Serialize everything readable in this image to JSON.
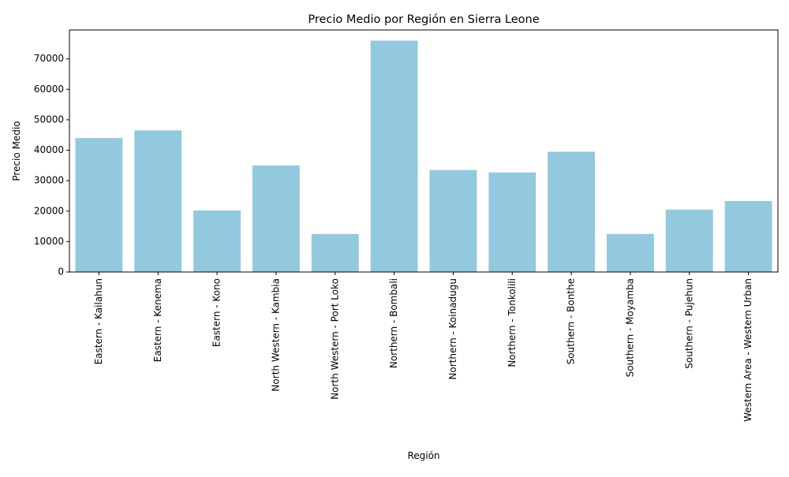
{
  "chart_data": {
    "type": "bar",
    "title": "Precio Medio por Región en Sierra Leone",
    "xlabel": "Región",
    "ylabel": "Precio Medio",
    "categories": [
      "Eastern - Kailahun",
      "Eastern - Kenema",
      "Eastern - Kono",
      "North Western - Kambia",
      "North Western - Port Loko",
      "Northern - Bombali",
      "Northern - Koinadugu",
      "Northern - Tonkolili",
      "Southern - Bonthe",
      "Southern - Moyamba",
      "Southern - Pujehun",
      "Western Area - Western Urban"
    ],
    "values": [
      44000,
      46500,
      20200,
      35000,
      12500,
      76000,
      33500,
      32700,
      39500,
      12500,
      20500,
      23300
    ],
    "ylim": [
      0,
      79500
    ],
    "yticks": [
      0,
      10000,
      20000,
      30000,
      40000,
      50000,
      60000,
      70000
    ],
    "ytick_labels": [
      "0",
      "10000",
      "20000",
      "30000",
      "40000",
      "50000",
      "60000",
      "70000"
    ],
    "bar_color": "#92c9df",
    "grid": false,
    "legend": "none"
  }
}
